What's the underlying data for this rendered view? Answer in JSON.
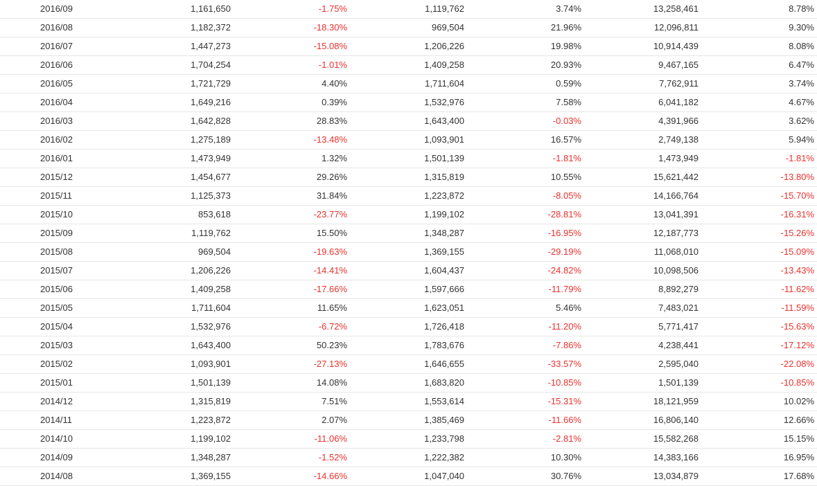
{
  "colors": {
    "text": "#333333",
    "negative": "#e8322e",
    "row_border": "#e6e6e6"
  },
  "rows": [
    [
      "2016/09",
      "1,161,650",
      "-1.75%",
      "1,119,762",
      "3.74%",
      "13,258,461",
      "8.78%"
    ],
    [
      "2016/08",
      "1,182,372",
      "-18.30%",
      "969,504",
      "21.96%",
      "12,096,811",
      "9.30%"
    ],
    [
      "2016/07",
      "1,447,273",
      "-15.08%",
      "1,206,226",
      "19.98%",
      "10,914,439",
      "8.08%"
    ],
    [
      "2016/06",
      "1,704,254",
      "-1.01%",
      "1,409,258",
      "20.93%",
      "9,467,165",
      "6.47%"
    ],
    [
      "2016/05",
      "1,721,729",
      "4.40%",
      "1,711,604",
      "0.59%",
      "7,762,911",
      "3.74%"
    ],
    [
      "2016/04",
      "1,649,216",
      "0.39%",
      "1,532,976",
      "7.58%",
      "6,041,182",
      "4.67%"
    ],
    [
      "2016/03",
      "1,642,828",
      "28.83%",
      "1,643,400",
      "-0.03%",
      "4,391,966",
      "3.62%"
    ],
    [
      "2016/02",
      "1,275,189",
      "-13.48%",
      "1,093,901",
      "16.57%",
      "2,749,138",
      "5.94%"
    ],
    [
      "2016/01",
      "1,473,949",
      "1.32%",
      "1,501,139",
      "-1.81%",
      "1,473,949",
      "-1.81%"
    ],
    [
      "2015/12",
      "1,454,677",
      "29.26%",
      "1,315,819",
      "10.55%",
      "15,621,442",
      "-13.80%"
    ],
    [
      "2015/11",
      "1,125,373",
      "31.84%",
      "1,223,872",
      "-8.05%",
      "14,166,764",
      "-15.70%"
    ],
    [
      "2015/10",
      "853,618",
      "-23.77%",
      "1,199,102",
      "-28.81%",
      "13,041,391",
      "-16.31%"
    ],
    [
      "2015/09",
      "1,119,762",
      "15.50%",
      "1,348,287",
      "-16.95%",
      "12,187,773",
      "-15.26%"
    ],
    [
      "2015/08",
      "969,504",
      "-19.63%",
      "1,369,155",
      "-29.19%",
      "11,068,010",
      "-15.09%"
    ],
    [
      "2015/07",
      "1,206,226",
      "-14.41%",
      "1,604,437",
      "-24.82%",
      "10,098,506",
      "-13.43%"
    ],
    [
      "2015/06",
      "1,409,258",
      "-17.66%",
      "1,597,666",
      "-11.79%",
      "8,892,279",
      "-11.62%"
    ],
    [
      "2015/05",
      "1,711,604",
      "11.65%",
      "1,623,051",
      "5.46%",
      "7,483,021",
      "-11.59%"
    ],
    [
      "2015/04",
      "1,532,976",
      "-6.72%",
      "1,726,418",
      "-11.20%",
      "5,771,417",
      "-15.63%"
    ],
    [
      "2015/03",
      "1,643,400",
      "50.23%",
      "1,783,676",
      "-7.86%",
      "4,238,441",
      "-17.12%"
    ],
    [
      "2015/02",
      "1,093,901",
      "-27.13%",
      "1,646,655",
      "-33.57%",
      "2,595,040",
      "-22.08%"
    ],
    [
      "2015/01",
      "1,501,139",
      "14.08%",
      "1,683,820",
      "-10.85%",
      "1,501,139",
      "-10.85%"
    ],
    [
      "2014/12",
      "1,315,819",
      "7.51%",
      "1,553,614",
      "-15.31%",
      "18,121,959",
      "10.02%"
    ],
    [
      "2014/11",
      "1,223,872",
      "2.07%",
      "1,385,469",
      "-11.66%",
      "16,806,140",
      "12.66%"
    ],
    [
      "2014/10",
      "1,199,102",
      "-11.06%",
      "1,233,798",
      "-2.81%",
      "15,582,268",
      "15.15%"
    ],
    [
      "2014/09",
      "1,348,287",
      "-1.52%",
      "1,222,382",
      "10.30%",
      "14,383,166",
      "16.95%"
    ],
    [
      "2014/08",
      "1,369,155",
      "-14.66%",
      "1,047,040",
      "30.76%",
      "13,034,879",
      "17.68%"
    ]
  ]
}
